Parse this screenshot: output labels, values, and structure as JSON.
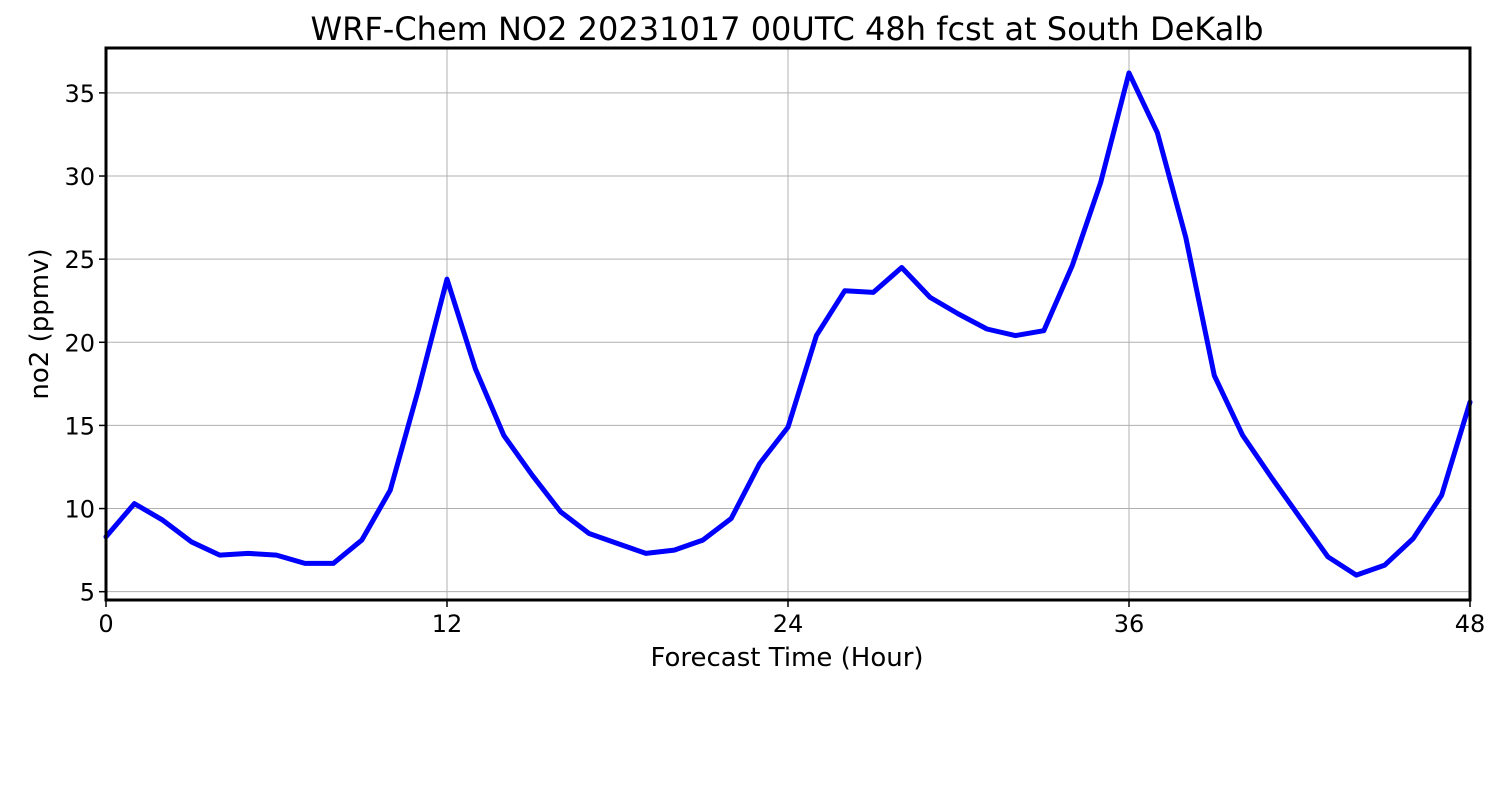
{
  "chart_data": {
    "type": "line",
    "title": "WRF-Chem NO2  20231017 00UTC 48h fcst at South DeKalb",
    "xlabel": "Forecast Time (Hour)",
    "ylabel": "no2  (ppmv)",
    "xlim": [
      0,
      48
    ],
    "ylim": [
      4.5,
      37.7
    ],
    "xticks": [
      0,
      12,
      24,
      36,
      48
    ],
    "yticks": [
      5,
      10,
      15,
      20,
      25,
      30,
      35
    ],
    "grid": true,
    "line_color": "#0000ff",
    "x": [
      0,
      1,
      2,
      3,
      4,
      5,
      6,
      7,
      8,
      9,
      10,
      11,
      12,
      13,
      14,
      15,
      16,
      17,
      18,
      19,
      20,
      21,
      22,
      23,
      24,
      25,
      26,
      27,
      28,
      29,
      30,
      31,
      32,
      33,
      34,
      35,
      36,
      37,
      38,
      39,
      40,
      41,
      42,
      43,
      44,
      45,
      46,
      47,
      48
    ],
    "series": [
      {
        "values": [
          8.3,
          10.3,
          9.3,
          8.0,
          7.2,
          7.3,
          7.2,
          6.7,
          6.7,
          8.1,
          11.1,
          17.2,
          23.8,
          18.4,
          14.4,
          12.0,
          9.8,
          8.5,
          7.9,
          7.3,
          7.5,
          8.1,
          9.4,
          12.7,
          14.9,
          20.4,
          23.1,
          23.0,
          24.5,
          22.7,
          21.7,
          20.8,
          20.4,
          20.7,
          24.6,
          29.6,
          36.2,
          32.6,
          26.3,
          18.0,
          14.4,
          11.9,
          9.5,
          7.1,
          6.0,
          6.6,
          8.2,
          10.8,
          16.4
        ]
      }
    ]
  }
}
